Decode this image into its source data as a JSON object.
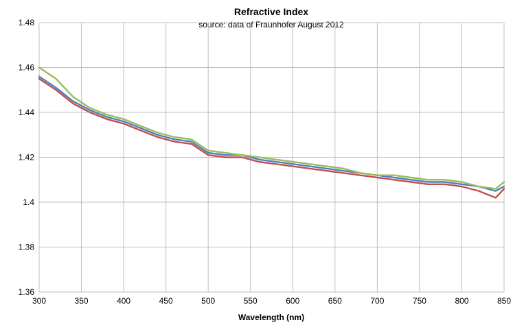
{
  "chart_data": {
    "type": "line",
    "title": "Refractive Index",
    "subtitle": "source: data of Fraunhofer August 2012",
    "xlabel": "Wavelength (nm)",
    "ylabel": "",
    "xlim": [
      300,
      850
    ],
    "ylim": [
      1.36,
      1.48
    ],
    "x_ticks": [
      "300",
      "350",
      "400",
      "450",
      "500",
      "550",
      "600",
      "650",
      "700",
      "750",
      "800",
      "850"
    ],
    "y_ticks": [
      "1.36",
      "1.38",
      "1.4",
      "1.42",
      "1.44",
      "1.46",
      "1.48"
    ],
    "grid": true,
    "legend": "none",
    "x": [
      300,
      320,
      340,
      360,
      380,
      400,
      420,
      440,
      460,
      480,
      500,
      520,
      540,
      560,
      580,
      600,
      620,
      640,
      660,
      680,
      700,
      720,
      740,
      760,
      780,
      800,
      820,
      840,
      850
    ],
    "series": [
      {
        "color": "#4f81bd",
        "values": [
          1.456,
          1.451,
          1.445,
          1.441,
          1.438,
          1.436,
          1.433,
          1.43,
          1.428,
          1.427,
          1.422,
          1.421,
          1.421,
          1.419,
          1.418,
          1.417,
          1.416,
          1.415,
          1.414,
          1.413,
          1.412,
          1.411,
          1.41,
          1.409,
          1.409,
          1.408,
          1.407,
          1.405,
          1.407
        ]
      },
      {
        "color": "#c0504d",
        "values": [
          1.455,
          1.45,
          1.444,
          1.44,
          1.437,
          1.435,
          1.432,
          1.429,
          1.427,
          1.426,
          1.421,
          1.42,
          1.42,
          1.418,
          1.417,
          1.416,
          1.415,
          1.414,
          1.413,
          1.412,
          1.411,
          1.41,
          1.409,
          1.408,
          1.408,
          1.407,
          1.405,
          1.402,
          1.406
        ]
      },
      {
        "color": "#9bbb59",
        "values": [
          1.46,
          1.455,
          1.447,
          1.442,
          1.439,
          1.437,
          1.434,
          1.431,
          1.429,
          1.428,
          1.423,
          1.422,
          1.421,
          1.42,
          1.419,
          1.418,
          1.417,
          1.416,
          1.415,
          1.413,
          1.412,
          1.412,
          1.411,
          1.41,
          1.41,
          1.409,
          1.407,
          1.406,
          1.409
        ]
      }
    ]
  }
}
